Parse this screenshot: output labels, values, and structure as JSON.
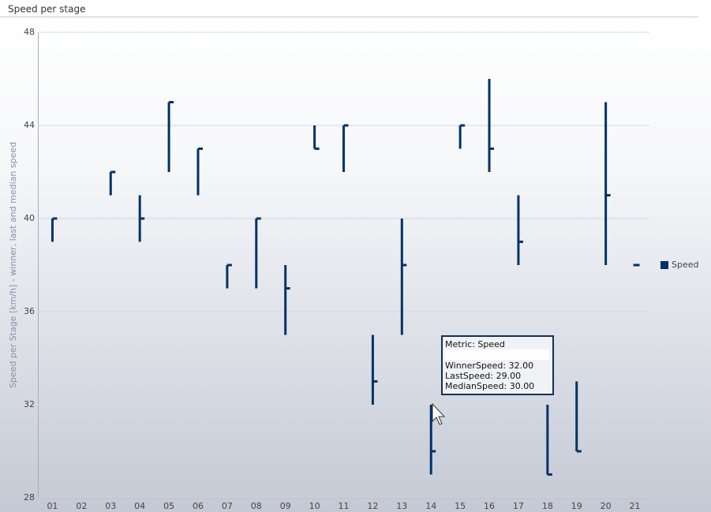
{
  "chart_data": {
    "type": "hilo",
    "title": "Speed per stage",
    "y_label": "Speed per Stage [km/h] - winner, last and median speed",
    "categories": [
      "01",
      "02",
      "03",
      "04",
      "05",
      "06",
      "07",
      "08",
      "09",
      "10",
      "11",
      "12",
      "13",
      "14",
      "15",
      "16",
      "17",
      "18",
      "19",
      "20",
      "21"
    ],
    "series": [
      {
        "name": "Speed",
        "color": "#003366",
        "high": [
          40,
          null,
          42,
          41,
          45,
          43,
          38,
          40,
          38,
          44,
          44,
          35,
          40,
          32,
          44,
          46,
          41,
          32,
          33,
          45,
          38
        ],
        "low": [
          39,
          null,
          41,
          39,
          42,
          41,
          37,
          37,
          35,
          43,
          42,
          32,
          35,
          29,
          43,
          42,
          38,
          29,
          30,
          38,
          38
        ],
        "median": [
          40,
          null,
          42,
          40,
          45,
          43,
          38,
          40,
          37,
          43,
          44,
          33,
          38,
          30,
          44,
          43,
          39,
          29,
          30,
          41,
          38
        ]
      }
    ],
    "ylim": [
      28,
      48
    ],
    "yticks": [
      28,
      32,
      36,
      40,
      44,
      48
    ],
    "grid": true,
    "legend": "right",
    "tooltip": {
      "title": "Metric: Speed",
      "lines": [
        "WinnerSpeed: 32.00",
        "LastSpeed: 29.00",
        "MedianSpeed: 30.00"
      ]
    }
  }
}
